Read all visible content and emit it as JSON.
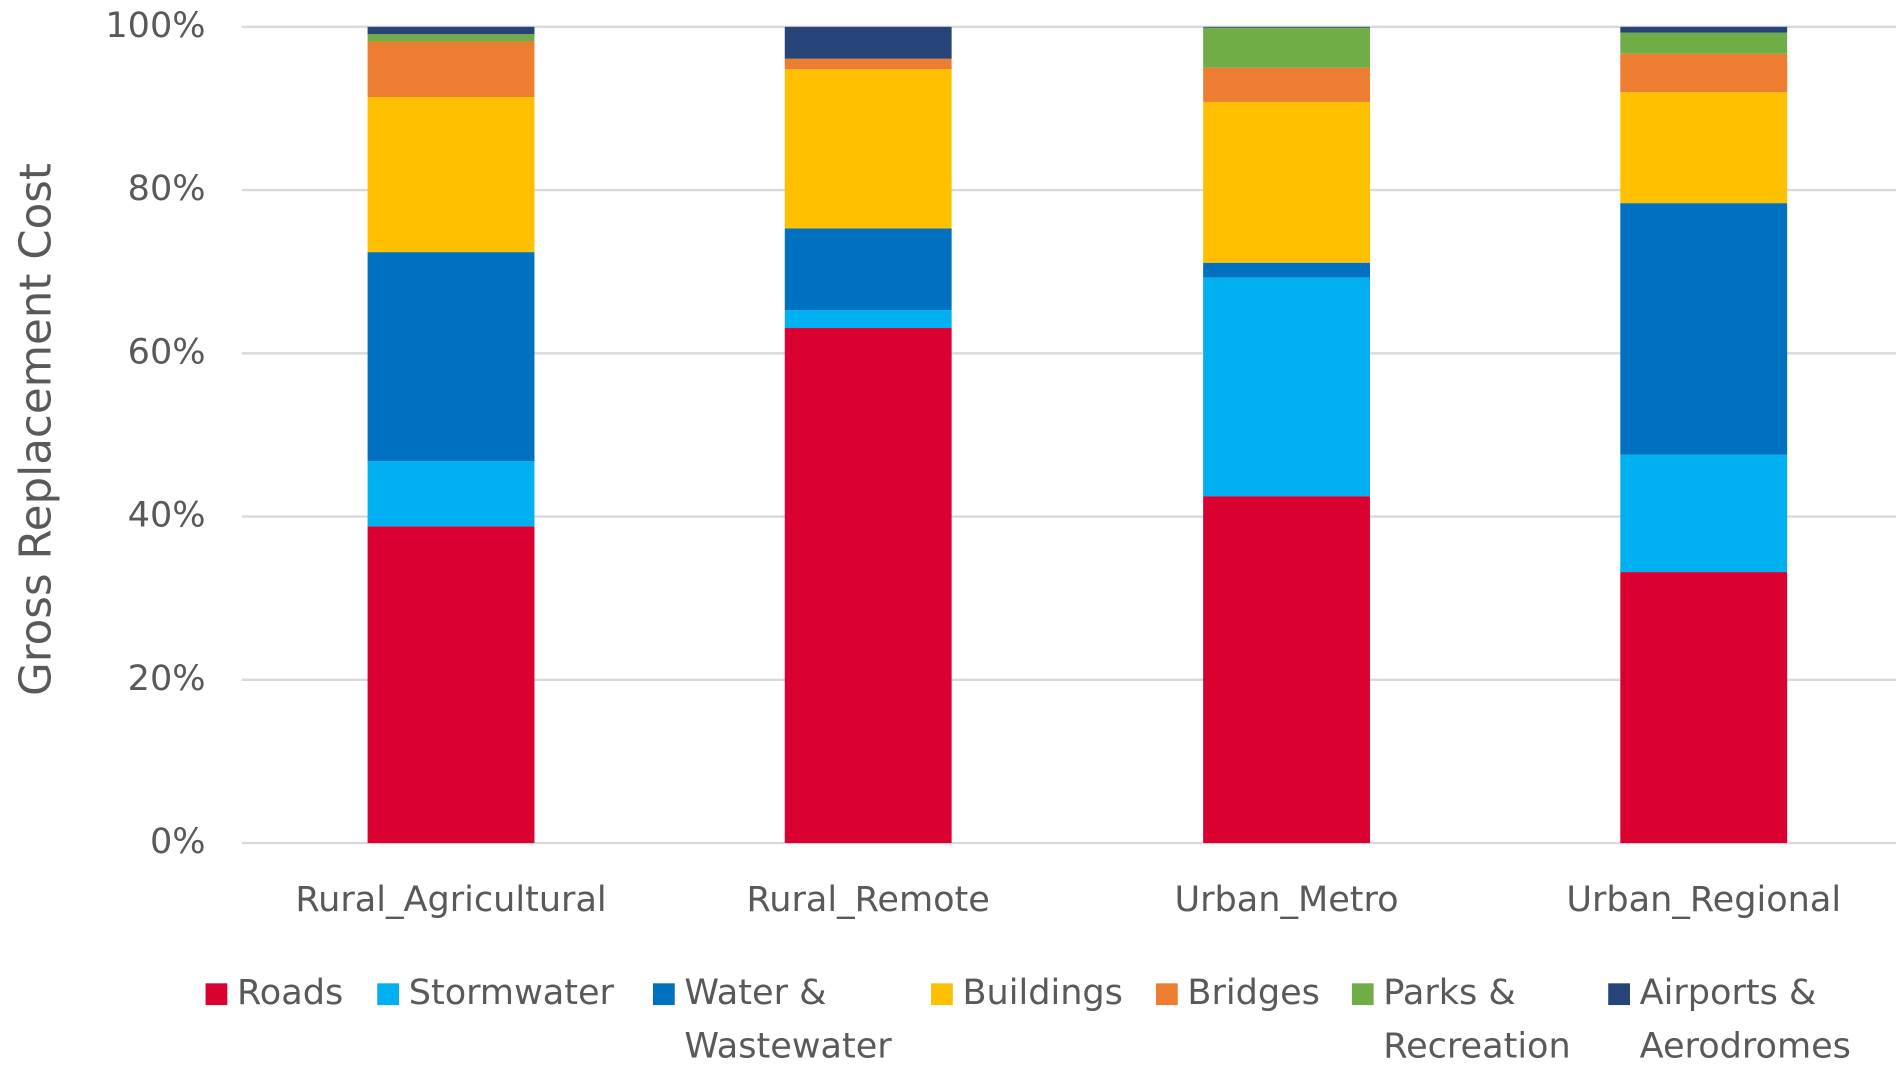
{
  "chart_data": {
    "type": "stacked_bar",
    "y_label": "Gross Replacement Cost",
    "categories": [
      "Rural_Agricultural",
      "Rural_Remote",
      "Urban_Metro",
      "Urban_Regional"
    ],
    "series": [
      {
        "name": "Roads",
        "color": "#da0030",
        "values": [
          38.8,
          63.1,
          42.5,
          33.2
        ]
      },
      {
        "name": "Stormwater",
        "color": "#00b0f0",
        "values": [
          8,
          2.2,
          26.8,
          14.4
        ]
      },
      {
        "name": "Water & Wastewater",
        "color": "#0070c0",
        "values": [
          25.6,
          10,
          1.8,
          30.8
        ]
      },
      {
        "name": "Buildings",
        "color": "#ffc000",
        "values": [
          19,
          19.5,
          19.7,
          13.6
        ]
      },
      {
        "name": "Bridges",
        "color": "#ed7d31",
        "values": [
          6.8,
          1.3,
          4.2,
          4.7
        ]
      },
      {
        "name": "Parks & Recreation",
        "color": "#70ad47",
        "values": [
          0.9,
          0,
          4.9,
          2.6
        ]
      },
      {
        "name": "Airports & Aerodromes",
        "color": "#264478",
        "values": [
          0.9,
          3.9,
          0.1,
          0.7
        ]
      }
    ],
    "ylim": [
      0,
      100
    ],
    "yticks": [
      {
        "value": 0,
        "label": "0%"
      },
      {
        "value": 20,
        "label": "20%"
      },
      {
        "value": 40,
        "label": "40%"
      },
      {
        "value": 60,
        "label": "60%"
      },
      {
        "value": 80,
        "label": "80%"
      },
      {
        "value": 100,
        "label": "100%"
      }
    ],
    "grid": true,
    "legend": "bottom"
  }
}
